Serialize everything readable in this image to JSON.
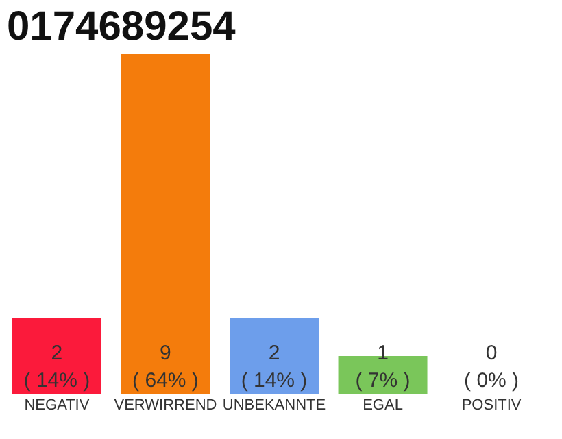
{
  "chart_data": {
    "type": "bar",
    "title": "0174689254",
    "categories": [
      "NEGATIV",
      "VERWIRREND",
      "UNBEKANNTE",
      "EGAL",
      "POSITIV"
    ],
    "values": [
      2,
      9,
      2,
      1,
      0
    ],
    "colors": [
      "#fb1a3b",
      "#f47c0c",
      "#6d9eeb",
      "#7ac65a",
      "#bdbdbd"
    ],
    "value_labels": [
      "2\n( 14% )",
      "9\n( 64% )",
      "2\n( 14% )",
      "1\n( 7% )",
      "0\n( 0% )"
    ],
    "tick_labels": "x",
    "grid": false
  }
}
